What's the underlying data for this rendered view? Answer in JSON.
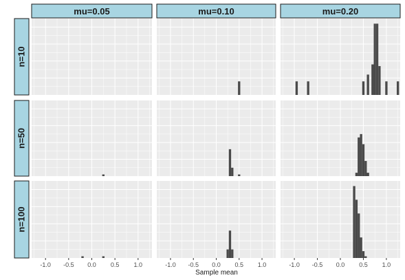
{
  "chart_data": {
    "type": "bar",
    "subtype": "faceted-histogram",
    "xlabel": "Sample mean",
    "ylabel": "",
    "xlim": [
      -1.3,
      1.3
    ],
    "x_ticks": [
      -1.0,
      -0.5,
      0.0,
      0.5,
      1.0
    ],
    "x_tick_labels": [
      "-1.0",
      "-0.5",
      "0.0",
      "0.5",
      "1.0"
    ],
    "grid": true,
    "bin_width": 0.05,
    "ylim": [
      0,
      45
    ],
    "columns": [
      "mu=0.05",
      "mu=0.10",
      "mu=0.20"
    ],
    "rows": [
      "n=10",
      "n=50",
      "n=100"
    ],
    "colors": {
      "strip_fill": "#a8d5e2",
      "panel_bg": "#ebebeb",
      "grid": "#ffffff",
      "bar": "#4a4a4a"
    },
    "panels": [
      {
        "row": "n=10",
        "col": "mu=0.05",
        "bins": []
      },
      {
        "row": "n=10",
        "col": "mu=0.10",
        "bins": [
          [
            0.5,
            8
          ]
        ]
      },
      {
        "row": "n=10",
        "col": "mu=0.20",
        "bins": [
          [
            -0.95,
            8
          ],
          [
            -0.7,
            8
          ],
          [
            0.5,
            8
          ],
          [
            0.6,
            12
          ],
          [
            0.7,
            18
          ],
          [
            0.75,
            42
          ],
          [
            0.8,
            42
          ],
          [
            0.85,
            17
          ],
          [
            1.0,
            8
          ],
          [
            1.25,
            8
          ]
        ]
      },
      {
        "row": "n=50",
        "col": "mu=0.05",
        "bins": [
          [
            0.25,
            1
          ]
        ]
      },
      {
        "row": "n=50",
        "col": "mu=0.10",
        "bins": [
          [
            0.3,
            16
          ],
          [
            0.35,
            5
          ],
          [
            0.5,
            1
          ]
        ]
      },
      {
        "row": "n=50",
        "col": "mu=0.20",
        "bins": [
          [
            0.35,
            2
          ],
          [
            0.4,
            23
          ],
          [
            0.45,
            25
          ],
          [
            0.5,
            19
          ],
          [
            0.55,
            9
          ],
          [
            0.6,
            2
          ]
        ]
      },
      {
        "row": "n=100",
        "col": "mu=0.05",
        "bins": [
          [
            -0.2,
            1
          ],
          [
            0.25,
            1
          ]
        ]
      },
      {
        "row": "n=100",
        "col": "mu=0.10",
        "bins": [
          [
            0.25,
            5
          ],
          [
            0.3,
            16
          ],
          [
            0.35,
            5
          ]
        ]
      },
      {
        "row": "n=100",
        "col": "mu=0.20",
        "bins": [
          [
            0.3,
            42
          ],
          [
            0.35,
            34
          ],
          [
            0.4,
            26
          ],
          [
            0.45,
            12
          ],
          [
            0.5,
            4
          ],
          [
            0.55,
            1
          ]
        ]
      }
    ]
  }
}
